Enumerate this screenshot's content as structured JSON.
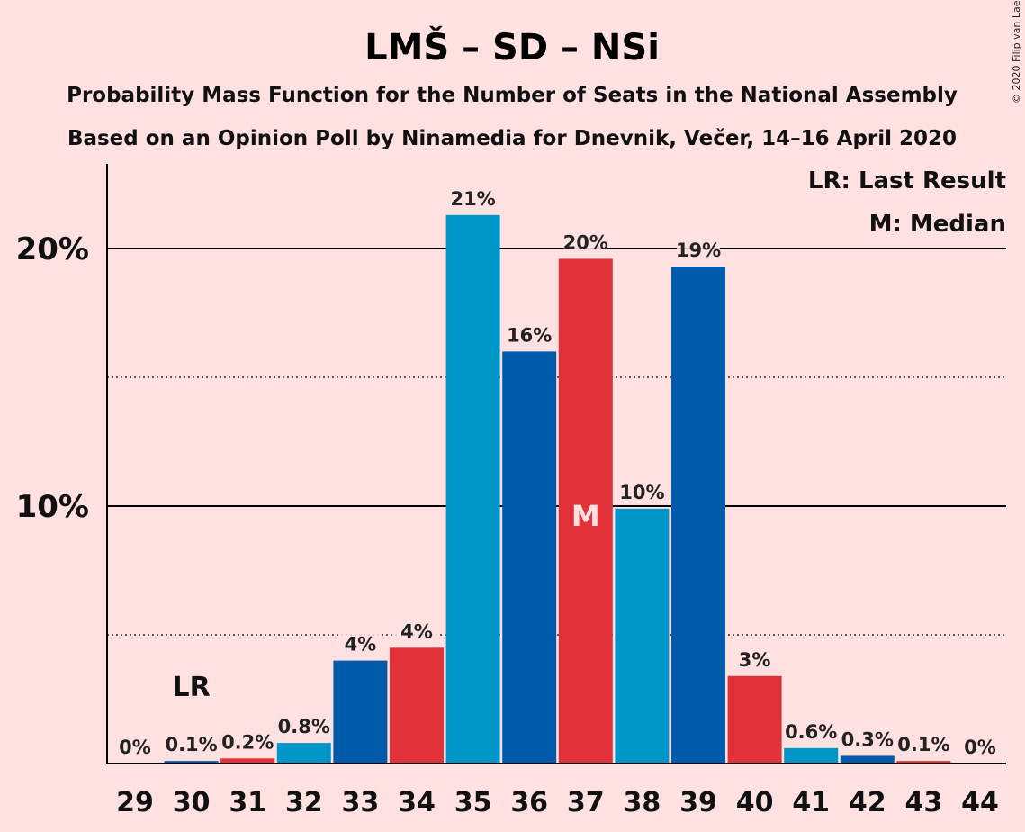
{
  "chart_data": {
    "type": "bar",
    "title": "LMŠ – SD – NSi",
    "subtitle_line1": "Probability Mass Function for the Number of Seats in the National Assembly",
    "subtitle_line2": "Based on an Opinion Poll by Ninamedia for Dnevnik, Večer, 14–16 April 2020",
    "copyright": "© 2020 Filip van Laenen",
    "categories": [
      "29",
      "30",
      "31",
      "32",
      "33",
      "34",
      "35",
      "36",
      "37",
      "38",
      "39",
      "40",
      "41",
      "42",
      "43",
      "44"
    ],
    "values": [
      0.0,
      0.1,
      0.2,
      0.8,
      4.0,
      4.5,
      21.3,
      16.0,
      19.6,
      9.9,
      19.3,
      3.4,
      0.6,
      0.3,
      0.1,
      0.0
    ],
    "data_labels": [
      "0%",
      "0.1%",
      "0.2%",
      "0.8%",
      "4%",
      "4%",
      "21%",
      "16%",
      "20%",
      "10%",
      "19%",
      "3%",
      "0.6%",
      "0.3%",
      "0.1%",
      "0%"
    ],
    "bar_colors": [
      "#0096c8",
      "#005aaa",
      "#e1323a",
      "#0096c8",
      "#005aaa",
      "#e1323a",
      "#0096c8",
      "#005aaa",
      "#e1323a",
      "#0096c8",
      "#005aaa",
      "#e1323a",
      "#0096c8",
      "#005aaa",
      "#e1323a",
      "#0096c8"
    ],
    "y_ticks": [
      {
        "value": 10,
        "label": "10%"
      },
      {
        "value": 20,
        "label": "20%"
      }
    ],
    "y_minor_ticks": [
      5,
      15
    ],
    "ylim": [
      0,
      22
    ],
    "last_result_category": "30",
    "last_result_marker": "LR",
    "median_category": "37",
    "median_marker": "M",
    "legend": {
      "placement": "top-right",
      "last_result": "LR: Last Result",
      "median": "M: Median"
    }
  }
}
